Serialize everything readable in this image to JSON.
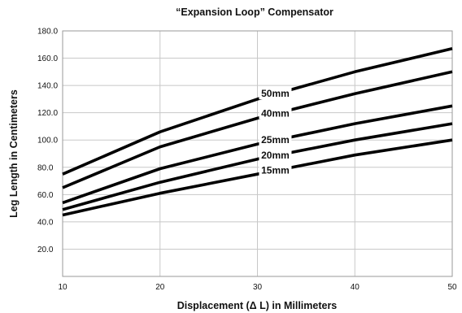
{
  "chart_data": {
    "type": "line",
    "title": "“Expansion Loop” Compensator",
    "xlabel": "Displacement (Δ L) in Millimeters",
    "ylabel": "Leg Length in Centimeters",
    "xlim": [
      10,
      50
    ],
    "ylim": [
      0,
      180
    ],
    "grid": true,
    "x_ticks": [
      "10",
      "20",
      "30",
      "40",
      "50"
    ],
    "y_ticks": [
      "20.0",
      "40.0",
      "60.0",
      "80.0",
      "100.0",
      "120.0",
      "140.0",
      "160.0",
      "180.0"
    ],
    "x": [
      10,
      20,
      30,
      40,
      50
    ],
    "series": [
      {
        "name": "50mm",
        "values": [
          75,
          106,
          130,
          150,
          167
        ]
      },
      {
        "name": "40mm",
        "values": [
          65,
          95,
          116,
          134,
          150
        ]
      },
      {
        "name": "25mm",
        "values": [
          54,
          79,
          97,
          112,
          125
        ]
      },
      {
        "name": "20mm",
        "values": [
          49,
          69,
          86,
          100,
          112
        ]
      },
      {
        "name": "15mm",
        "values": [
          45,
          61,
          75,
          89,
          100
        ]
      }
    ]
  }
}
